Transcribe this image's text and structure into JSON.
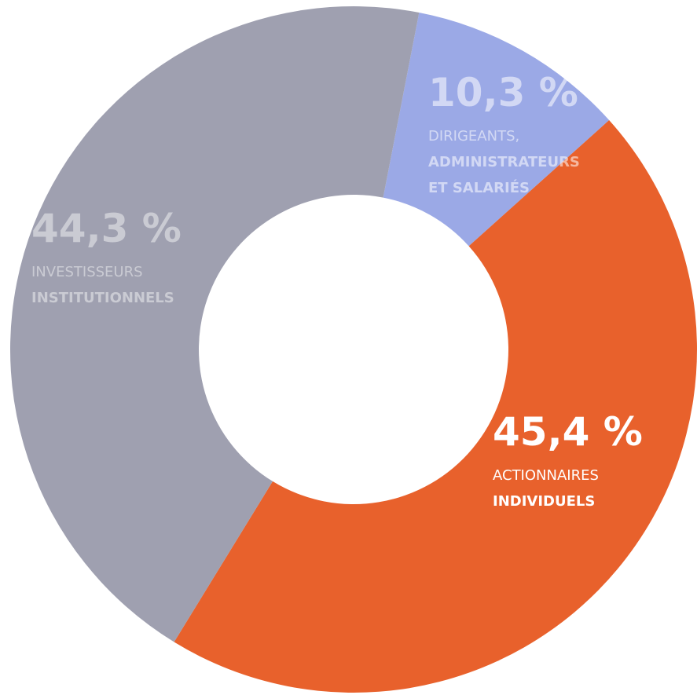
{
  "chart_data": {
    "type": "donut",
    "categories": [
      [
        "DIRIGEANTS,",
        "ADMINISTRATEURS",
        "ET SALARIÉS"
      ],
      [
        "ACTIONNAIRES",
        "INDIVIDUELS"
      ],
      [
        "INVESTISSEURS",
        "INSTITUTIONNELS"
      ]
    ],
    "values": [
      10.3,
      45.4,
      44.3
    ],
    "value_labels": [
      "10,3 %",
      "45,4 %",
      "44,3 %"
    ],
    "colors": [
      "#9ba9e6",
      "#e8612c",
      "#9fa0b0"
    ]
  }
}
